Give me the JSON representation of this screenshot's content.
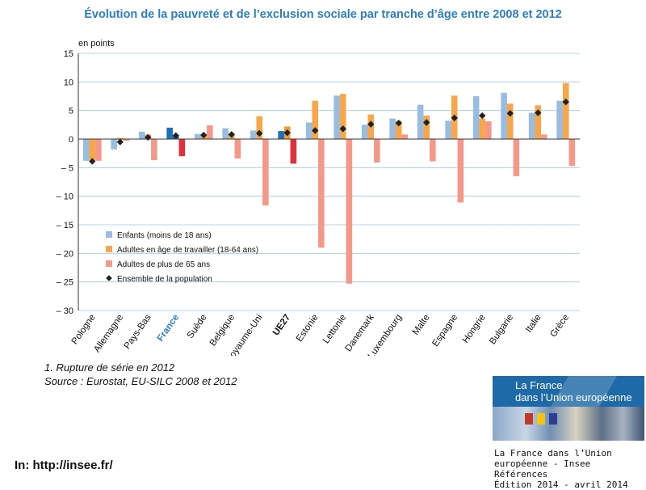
{
  "chart_data": {
    "type": "bar",
    "title": "Évolution de la pauvreté et de l’exclusion sociale par tranche d’âge entre 2008 et 2012",
    "ylabel": "en points",
    "ylim": [
      -30,
      15
    ],
    "yticks": [
      15,
      10,
      5,
      0,
      -5,
      -10,
      -15,
      -20,
      -25,
      -30
    ],
    "ytick_labels": [
      "15",
      "10",
      "5",
      "0",
      "– 5",
      "– 10",
      "– 15",
      "– 20",
      "– 25",
      "– 30"
    ],
    "grid": true,
    "legend_position": "bottom-left",
    "categories": [
      "Pologne",
      "Allemagne",
      "Pays-Bas",
      "France",
      "Suède",
      "Belgique",
      "Royaume-Uni",
      "UE27",
      "Estonie",
      "Lettonie",
      "Danemark",
      "Luxembourg",
      "Malte",
      "Espagne",
      "Hongrie",
      "Bulgarie",
      "Italie",
      "Grèce"
    ],
    "highlight_categories": {
      "France": "#2a7fc1",
      "UE27": "#111111"
    },
    "highlight_colors": {
      "France": [
        "#1f72b7",
        "#1f72b7",
        "#e0303a"
      ],
      "UE27": [
        "#1f72b7",
        "#f39c2b",
        "#e0303a"
      ]
    },
    "series": [
      {
        "name": "Enfants (moins de 18 ans)",
        "color": "#99bde0",
        "values": [
          -3.8,
          -1.8,
          1.3,
          2.0,
          0.9,
          1.9,
          1.5,
          1.4,
          2.9,
          7.6,
          2.5,
          3.6,
          6.0,
          3.2,
          7.5,
          8.1,
          4.6,
          6.7
        ]
      },
      {
        "name": "Adultes en âge de travailler (18-64 ans)",
        "color": "#f7a64a",
        "values": [
          -3.6,
          0.2,
          0.8,
          0.5,
          0.7,
          1.0,
          4.0,
          2.2,
          6.7,
          7.9,
          4.3,
          3.2,
          4.1,
          7.6,
          3.6,
          6.2,
          5.9,
          9.8
        ]
      },
      {
        "name": "Adultes de plus de 65 ans",
        "color": "#f4998a",
        "values": [
          -3.8,
          -0.3,
          -3.7,
          -3.0,
          2.4,
          -3.4,
          -11.6,
          -4.3,
          -19.0,
          -25.3,
          -4.1,
          0.8,
          -3.9,
          -11.1,
          3.1,
          -6.5,
          0.8,
          -4.7
        ]
      },
      {
        "name": "Ensemble de la population",
        "color": "#222222",
        "marker": "diamond",
        "values": [
          -3.9,
          -0.5,
          0.3,
          0.6,
          0.7,
          0.8,
          1.0,
          1.1,
          1.5,
          1.8,
          2.6,
          2.8,
          2.9,
          3.7,
          4.1,
          4.5,
          4.6,
          6.5
        ]
      }
    ]
  },
  "notes": {
    "line1": "1. Rupture de série en 2012",
    "line2": "Source : Eurostat, EU-SILC 2008 et 2012"
  },
  "source_url": "In: http://insee.fr/",
  "publication": {
    "cover_title_line1": "La France",
    "cover_title_line2": "dans l’Union européenne",
    "caption_line1": "La France dans l’Union",
    "caption_line2": "européenne - Insee Références",
    "caption_line3": "Édition 2014 - avril 2014"
  }
}
